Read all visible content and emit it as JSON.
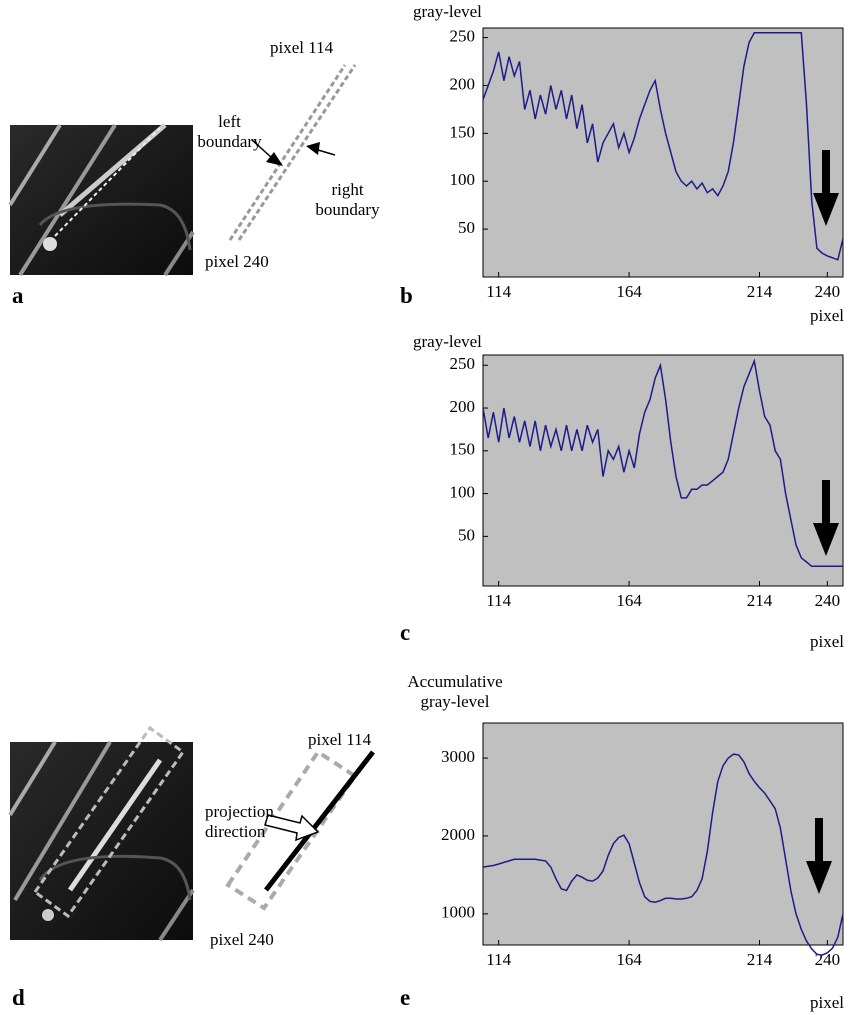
{
  "panel_labels": [
    "a",
    "b",
    "c",
    "d",
    "e"
  ],
  "annotations": {
    "top_diagram": [
      "pixel 114",
      "left boundary",
      "right boundary",
      "pixel 240"
    ],
    "bottom_diagram": [
      "pixel 114",
      "projection direction",
      "pixel 240"
    ]
  },
  "chart_data": [
    {
      "type": "line",
      "ylabel": "gray-level",
      "xlabel": "pixel",
      "color": "#1c1c8a",
      "xlim": [
        108,
        246
      ],
      "xticks": [
        114,
        164,
        214,
        240
      ],
      "ylim": [
        0,
        260
      ],
      "yticks": [
        50,
        100,
        150,
        200,
        250
      ],
      "x": [
        108,
        110,
        112,
        114,
        116,
        118,
        120,
        122,
        124,
        126,
        128,
        130,
        132,
        134,
        136,
        138,
        140,
        142,
        144,
        146,
        148,
        150,
        152,
        154,
        156,
        158,
        160,
        162,
        164,
        166,
        168,
        170,
        172,
        174,
        176,
        178,
        180,
        182,
        184,
        186,
        188,
        190,
        192,
        194,
        196,
        198,
        200,
        202,
        204,
        206,
        208,
        210,
        212,
        214,
        216,
        218,
        220,
        222,
        224,
        226,
        228,
        230,
        232,
        234,
        236,
        238,
        240,
        242,
        244,
        246
      ],
      "values": [
        185,
        200,
        215,
        235,
        205,
        230,
        210,
        225,
        175,
        195,
        165,
        190,
        170,
        200,
        175,
        195,
        165,
        190,
        155,
        180,
        140,
        160,
        120,
        140,
        150,
        160,
        135,
        150,
        130,
        145,
        165,
        180,
        195,
        205,
        175,
        150,
        130,
        110,
        100,
        95,
        100,
        92,
        98,
        88,
        92,
        85,
        95,
        110,
        140,
        180,
        220,
        245,
        255,
        255,
        255,
        255,
        255,
        255,
        255,
        255,
        255,
        255,
        180,
        80,
        30,
        25,
        22,
        20,
        18,
        40
      ]
    },
    {
      "type": "line",
      "ylabel": "gray-level",
      "xlabel": "pixel",
      "color": "#1c1c8a",
      "xlim": [
        108,
        246
      ],
      "xticks": [
        114,
        164,
        214,
        240
      ],
      "ylim": [
        -8,
        262
      ],
      "yticks": [
        50,
        100,
        150,
        200,
        250
      ],
      "x": [
        108,
        110,
        112,
        114,
        116,
        118,
        120,
        122,
        124,
        126,
        128,
        130,
        132,
        134,
        136,
        138,
        140,
        142,
        144,
        146,
        148,
        150,
        152,
        154,
        156,
        158,
        160,
        162,
        164,
        166,
        168,
        170,
        172,
        174,
        176,
        178,
        180,
        182,
        184,
        186,
        188,
        190,
        192,
        194,
        196,
        198,
        200,
        202,
        204,
        206,
        208,
        210,
        212,
        214,
        216,
        218,
        220,
        222,
        224,
        226,
        228,
        230,
        232,
        234,
        236,
        238,
        240,
        242,
        244,
        246
      ],
      "values": [
        200,
        165,
        195,
        160,
        200,
        165,
        190,
        160,
        185,
        155,
        185,
        150,
        180,
        155,
        175,
        150,
        180,
        150,
        175,
        150,
        180,
        160,
        175,
        120,
        150,
        140,
        155,
        125,
        150,
        130,
        170,
        195,
        210,
        235,
        250,
        210,
        160,
        120,
        95,
        95,
        105,
        105,
        110,
        110,
        115,
        120,
        125,
        140,
        170,
        200,
        225,
        240,
        255,
        220,
        190,
        180,
        150,
        140,
        100,
        70,
        40,
        25,
        20,
        15,
        15,
        15,
        15,
        15,
        15,
        15
      ]
    },
    {
      "type": "line",
      "ylabel": "Accumulative gray-level",
      "xlabel": "pixel",
      "color": "#1c1c8a",
      "xlim": [
        108,
        246
      ],
      "xticks": [
        114,
        164,
        214,
        240
      ],
      "ylim": [
        600,
        3450
      ],
      "yticks": [
        1000,
        2000,
        3000
      ],
      "x": [
        108,
        110,
        112,
        114,
        116,
        118,
        120,
        122,
        124,
        126,
        128,
        130,
        132,
        134,
        136,
        138,
        140,
        142,
        144,
        146,
        148,
        150,
        152,
        154,
        156,
        158,
        160,
        162,
        164,
        166,
        168,
        170,
        172,
        174,
        176,
        178,
        180,
        182,
        184,
        186,
        188,
        190,
        192,
        194,
        196,
        198,
        200,
        202,
        204,
        206,
        208,
        210,
        212,
        214,
        216,
        218,
        220,
        222,
        224,
        226,
        228,
        230,
        232,
        234,
        236,
        238,
        240,
        242,
        244,
        246
      ],
      "values": [
        1600,
        1610,
        1620,
        1640,
        1660,
        1680,
        1700,
        1700,
        1700,
        1700,
        1700,
        1690,
        1680,
        1600,
        1450,
        1320,
        1300,
        1420,
        1500,
        1470,
        1430,
        1420,
        1460,
        1550,
        1750,
        1900,
        1980,
        2010,
        1900,
        1650,
        1400,
        1220,
        1160,
        1150,
        1170,
        1200,
        1200,
        1190,
        1190,
        1200,
        1220,
        1300,
        1450,
        1800,
        2300,
        2700,
        2900,
        3000,
        3050,
        3040,
        2950,
        2800,
        2700,
        2620,
        2550,
        2450,
        2350,
        2100,
        1700,
        1300,
        1000,
        800,
        650,
        550,
        480,
        470,
        500,
        560,
        700,
        1000
      ]
    }
  ]
}
